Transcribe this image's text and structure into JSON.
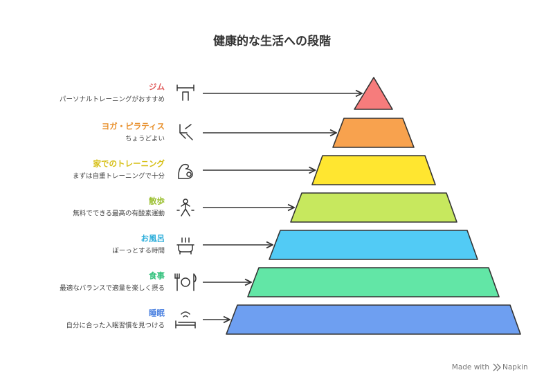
{
  "title": "健康的な生活への段階",
  "levels": [
    {
      "label": "ジム",
      "description": "パーソナルトレーニングがおすすめ"
    },
    {
      "label": "ヨガ・ピラティス",
      "description": "ちょうどよい"
    },
    {
      "label": "家でのトレーニング",
      "description": "まずは自重トレーニングで十分"
    },
    {
      "label": "散歩",
      "description": "無料でできる最高の有酸素運動"
    },
    {
      "label": "お風呂",
      "description": "ぼーっとする時間"
    },
    {
      "label": "食事",
      "description": "最適なバランスで適量を楽しく摂る"
    },
    {
      "label": "睡眠",
      "description": "自分に合った入眠習慣を見つける"
    }
  ],
  "footer": {
    "made_with": "Made with",
    "brand": "Napkin"
  }
}
